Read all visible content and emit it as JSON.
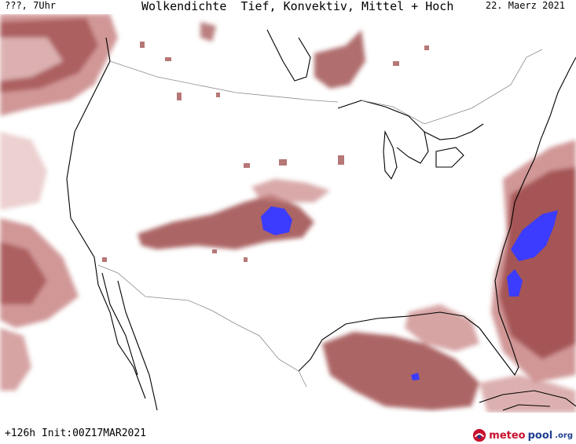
{
  "header": {
    "left": "???, 7Uhr",
    "title": "Wolkendichte  Tief, Konvektiv, Mittel + Hoch",
    "right": "22. Maerz 2021"
  },
  "footer": {
    "forecast": "+126h Init:00Z17MAR2021"
  },
  "logo": {
    "part1": "meteo",
    "part2": "pool",
    "part3": ".org"
  },
  "colors": {
    "cloud_light": "#e8c4c4",
    "cloud_medium": "#c98585",
    "cloud_dark": "#9e4a4a",
    "cloud_max": "#3c3cff",
    "coast": "#000000",
    "border": "#8a8a8a"
  }
}
